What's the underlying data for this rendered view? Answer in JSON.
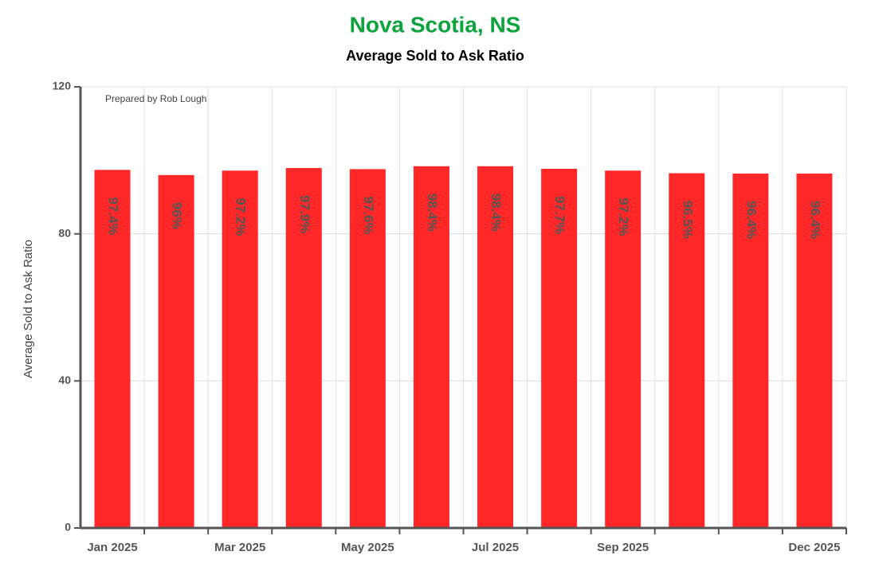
{
  "chart_data": {
    "type": "bar",
    "title": "Nova Scotia, NS",
    "subtitle": "Average Sold to Ask Ratio",
    "y_label": "Average Sold to Ask Ratio",
    "annotation": "Prepared by Rob Lough",
    "categories": [
      "Jan 2025",
      null,
      "Mar 2025",
      null,
      "May 2025",
      null,
      "Jul 2025",
      null,
      "Sep 2025",
      null,
      null,
      "Dec 2025"
    ],
    "values": [
      97.4,
      96,
      97.2,
      97.9,
      97.6,
      98.4,
      98.4,
      97.7,
      97.2,
      96.5,
      96.4,
      96.4
    ],
    "value_labels": [
      "97.4%",
      "96%",
      "97.2%",
      "97.9%",
      "97.6%",
      "98.4%",
      "98.4%",
      "97.7%",
      "97.2%",
      "96.5%",
      "96.4%",
      "96.4%"
    ],
    "color": "#ff2727",
    "ylim": [
      0,
      120
    ],
    "yticks": [
      0,
      40,
      80,
      120
    ],
    "grid": true
  }
}
